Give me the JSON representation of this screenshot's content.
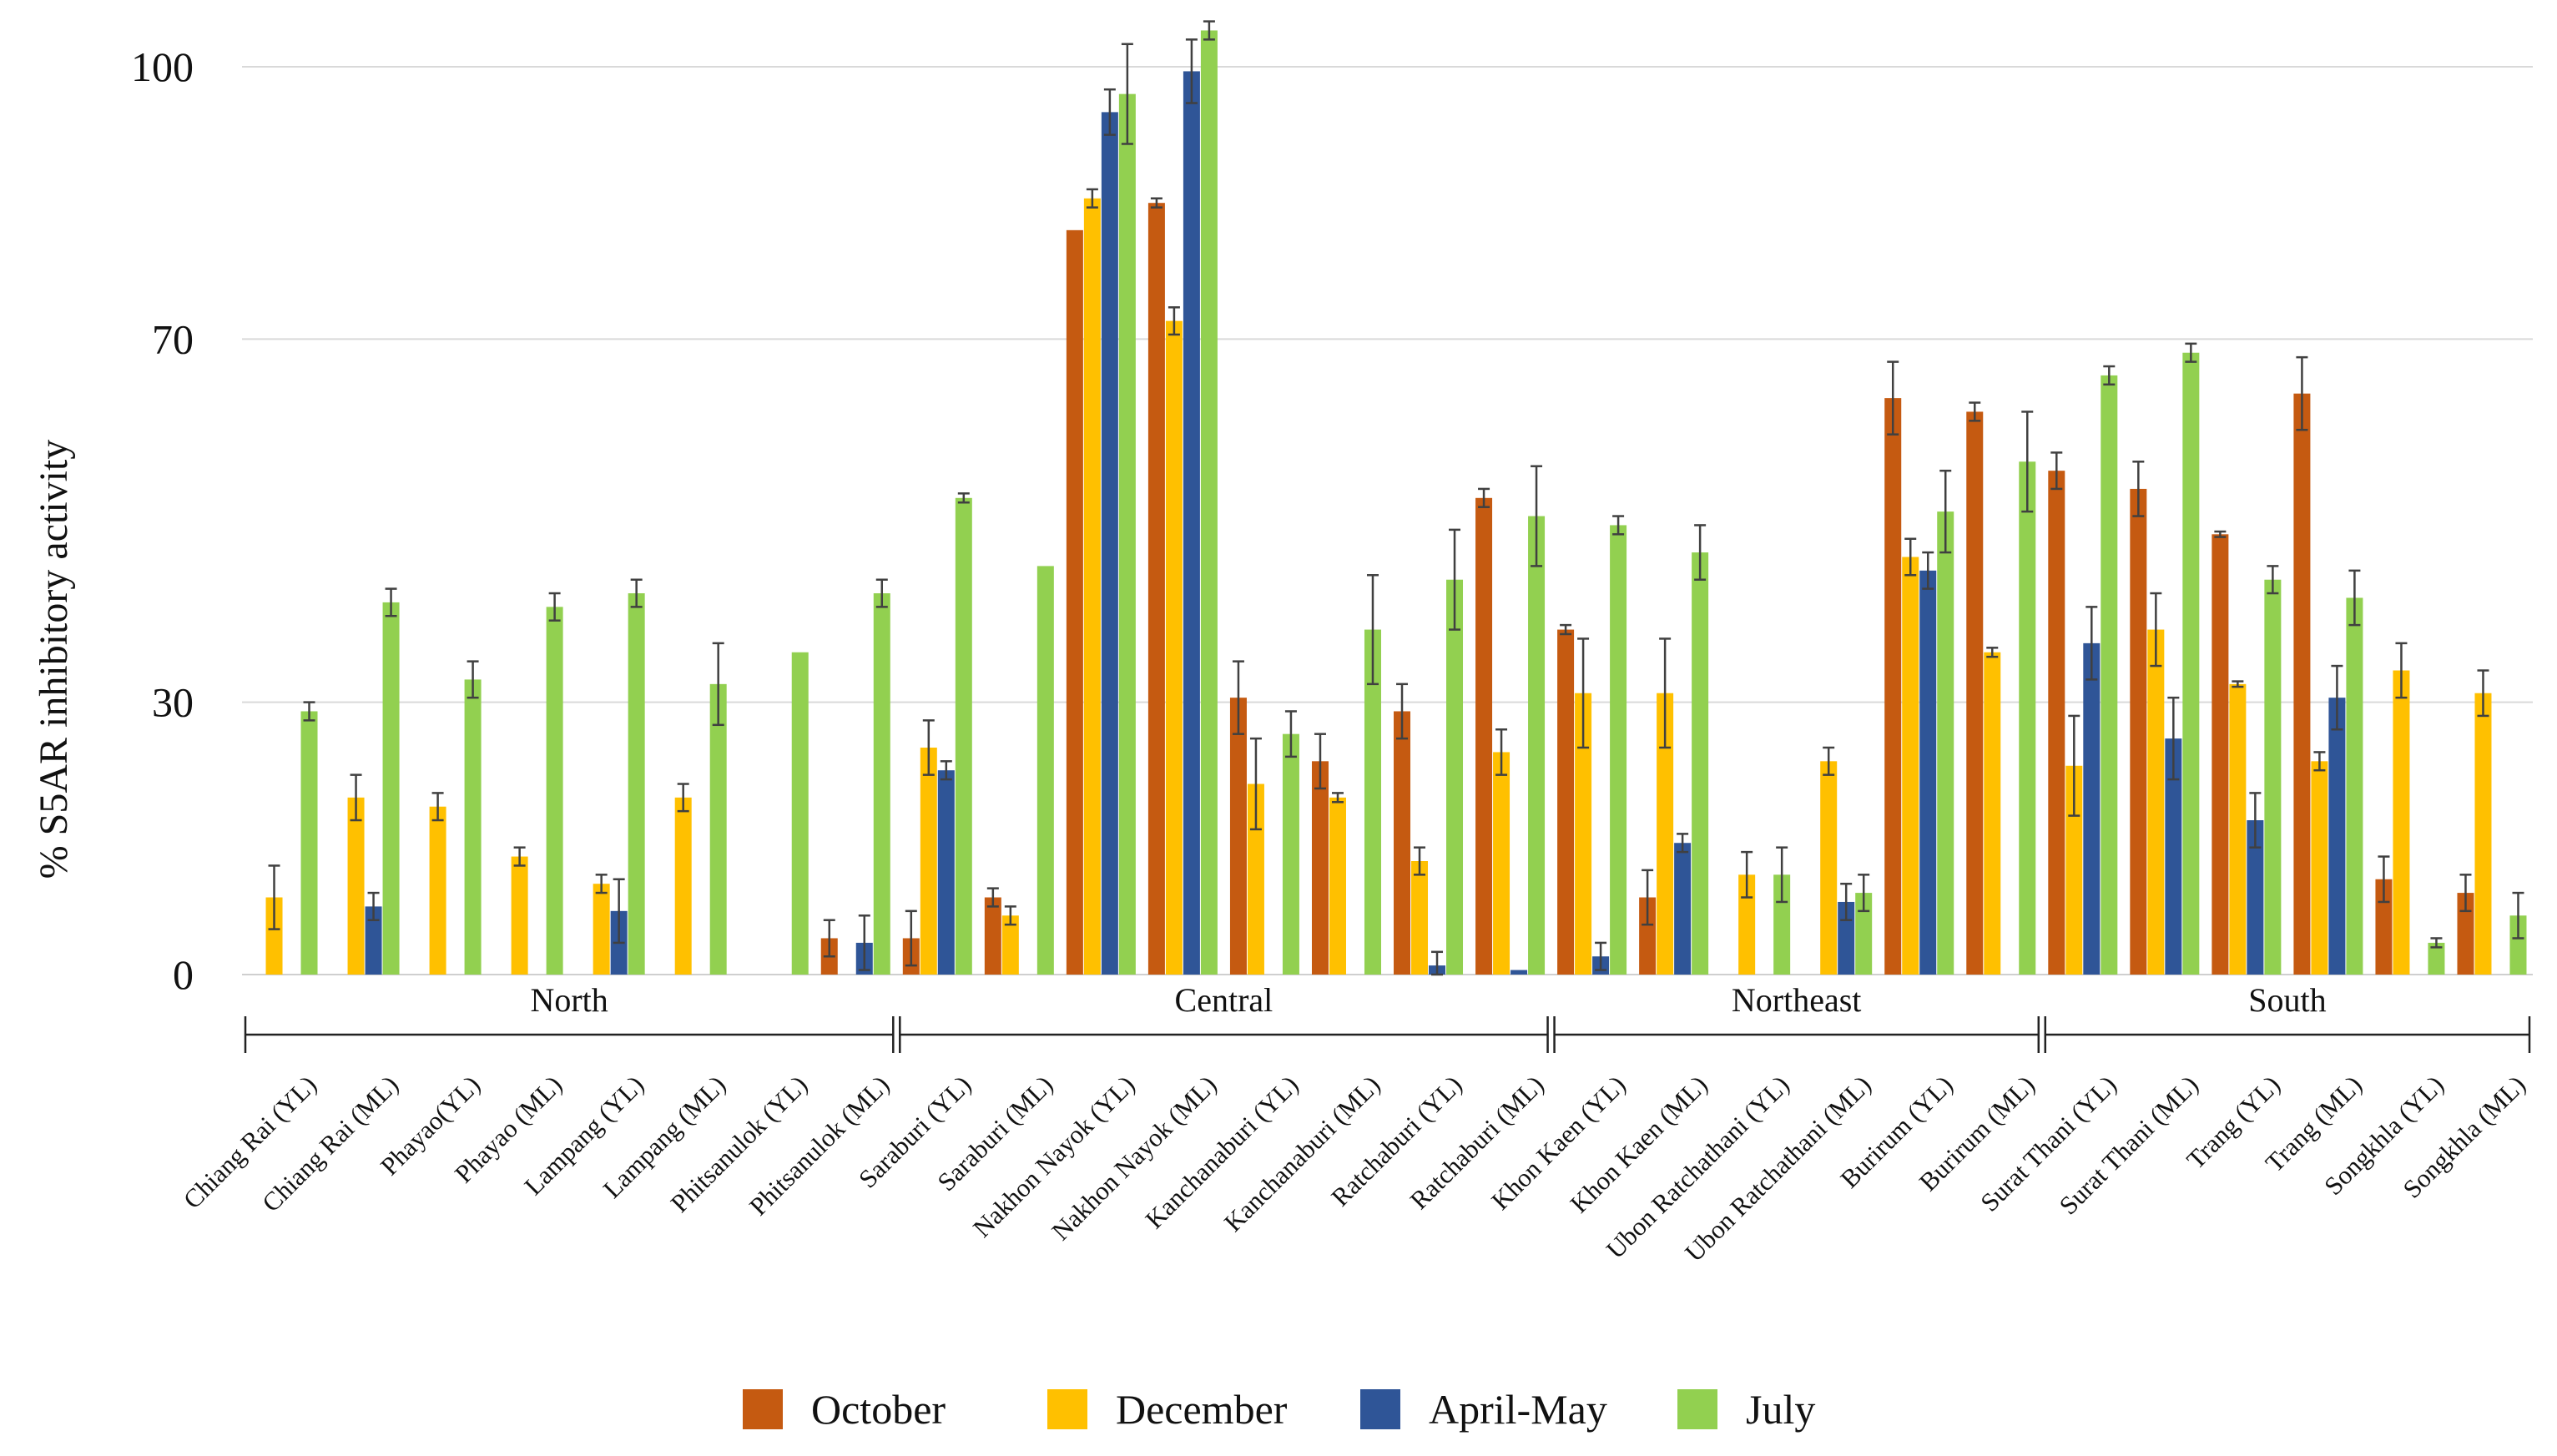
{
  "chart_data": {
    "type": "bar",
    "title": "",
    "xlabel": "",
    "ylabel": "% S5AR inhibitory activity",
    "ylim": [
      0,
      103
    ],
    "yticks": [
      0,
      30,
      70,
      100
    ],
    "ytick_labels": [
      "0",
      "30",
      "70",
      "100"
    ],
    "grid": true,
    "legend_position": "bottom-center",
    "categories": [
      "Chiang Rai (YL)",
      "Chiang Rai (ML)",
      "Phayao(YL)",
      "Phayao (ML)",
      "Lampang (YL)",
      "Lampang (ML)",
      "Phitsanulok (YL)",
      "Phitsanulok (ML)",
      "Saraburi (YL)",
      "Saraburi (ML)",
      "Nakhon Nayok (YL)",
      "Nakhon Nayok (ML)",
      "Kanchanaburi (YL)",
      "Kanchanaburi (ML)",
      "Ratchaburi (YL)",
      "Ratchaburi (ML)",
      "Khon Kaen (YL)",
      "Khon Kaen (ML)",
      "Ubon Ratchathani (YL)",
      "Ubon Ratchathani (ML)",
      "Burirum (YL)",
      "Burirum (ML)",
      "Surat Thani (YL)",
      "Surat Thani (ML)",
      "Trang (YL)",
      "Trang (ML)",
      "Songkhla (YL)",
      "Songkhla (ML)"
    ],
    "regions": [
      {
        "name": "North",
        "first": 0,
        "last": 7
      },
      {
        "name": "Central",
        "first": 8,
        "last": 15
      },
      {
        "name": "Northeast",
        "first": 16,
        "last": 21
      },
      {
        "name": "South",
        "first": 22,
        "last": 27
      }
    ],
    "series": [
      {
        "name": "October",
        "color": "#C55A11",
        "values": [
          0,
          0,
          0,
          0,
          0,
          0,
          0,
          4,
          4,
          8.5,
          82,
          85,
          30.5,
          23.5,
          29,
          52.5,
          38,
          8.5,
          0,
          0,
          63.5,
          62,
          55.5,
          53.5,
          48.5,
          64,
          10.5,
          9
        ],
        "errors": [
          0,
          0,
          0,
          0,
          0,
          0,
          0,
          2,
          3,
          1,
          0,
          0.5,
          4,
          3,
          3,
          1,
          0.5,
          3,
          0,
          0,
          4,
          1,
          2,
          3,
          0.3,
          4,
          2.5,
          2
        ]
      },
      {
        "name": "December",
        "color": "#FFC000",
        "values": [
          8.5,
          19.5,
          18.5,
          13,
          10,
          19.5,
          0,
          0,
          25,
          6.5,
          85.5,
          72,
          21,
          19.5,
          12.5,
          24.5,
          31,
          31,
          11,
          23.5,
          46,
          35.5,
          23,
          38,
          32,
          23.5,
          33.5,
          31
        ],
        "errors": [
          3.5,
          2.5,
          1.5,
          1,
          1,
          1.5,
          0,
          0,
          3,
          1,
          1,
          1.5,
          5,
          0.5,
          1.5,
          2.5,
          6,
          6,
          2.5,
          1.5,
          2,
          0.5,
          5.5,
          4,
          0.3,
          1,
          3,
          2.5
        ]
      },
      {
        "name": "April-May",
        "color": "#2F5597",
        "values": [
          0,
          7.5,
          0,
          0,
          7,
          0,
          0,
          3.5,
          22.5,
          0,
          95,
          99.5,
          0,
          0,
          1,
          0.5,
          2,
          14.5,
          0,
          8,
          44.5,
          0,
          36.5,
          26,
          17,
          30.5,
          0,
          0
        ],
        "errors": [
          0,
          1.5,
          0,
          0,
          3.5,
          0,
          0,
          3,
          1,
          0,
          2.5,
          3.5,
          0,
          0,
          1.5,
          0,
          1.5,
          1,
          0,
          2,
          2,
          0,
          4,
          4.5,
          3,
          3.5,
          0,
          0
        ]
      },
      {
        "name": "July",
        "color": "#92D050",
        "values": [
          29,
          41,
          32.5,
          40.5,
          42,
          32,
          35.5,
          42,
          52.5,
          45,
          97,
          104,
          26.5,
          38,
          43.5,
          50.5,
          49.5,
          46.5,
          11,
          9,
          51,
          56.5,
          66,
          68.5,
          43.5,
          41.5,
          3.5,
          6.5
        ],
        "errors": [
          1,
          1.5,
          2,
          1.5,
          1.5,
          4.5,
          0,
          1.5,
          0.5,
          0,
          5.5,
          1,
          2.5,
          6,
          5.5,
          5.5,
          1,
          3,
          3,
          2,
          4.5,
          5.5,
          1,
          1,
          1.5,
          3,
          0.5,
          2.5
        ]
      }
    ]
  }
}
